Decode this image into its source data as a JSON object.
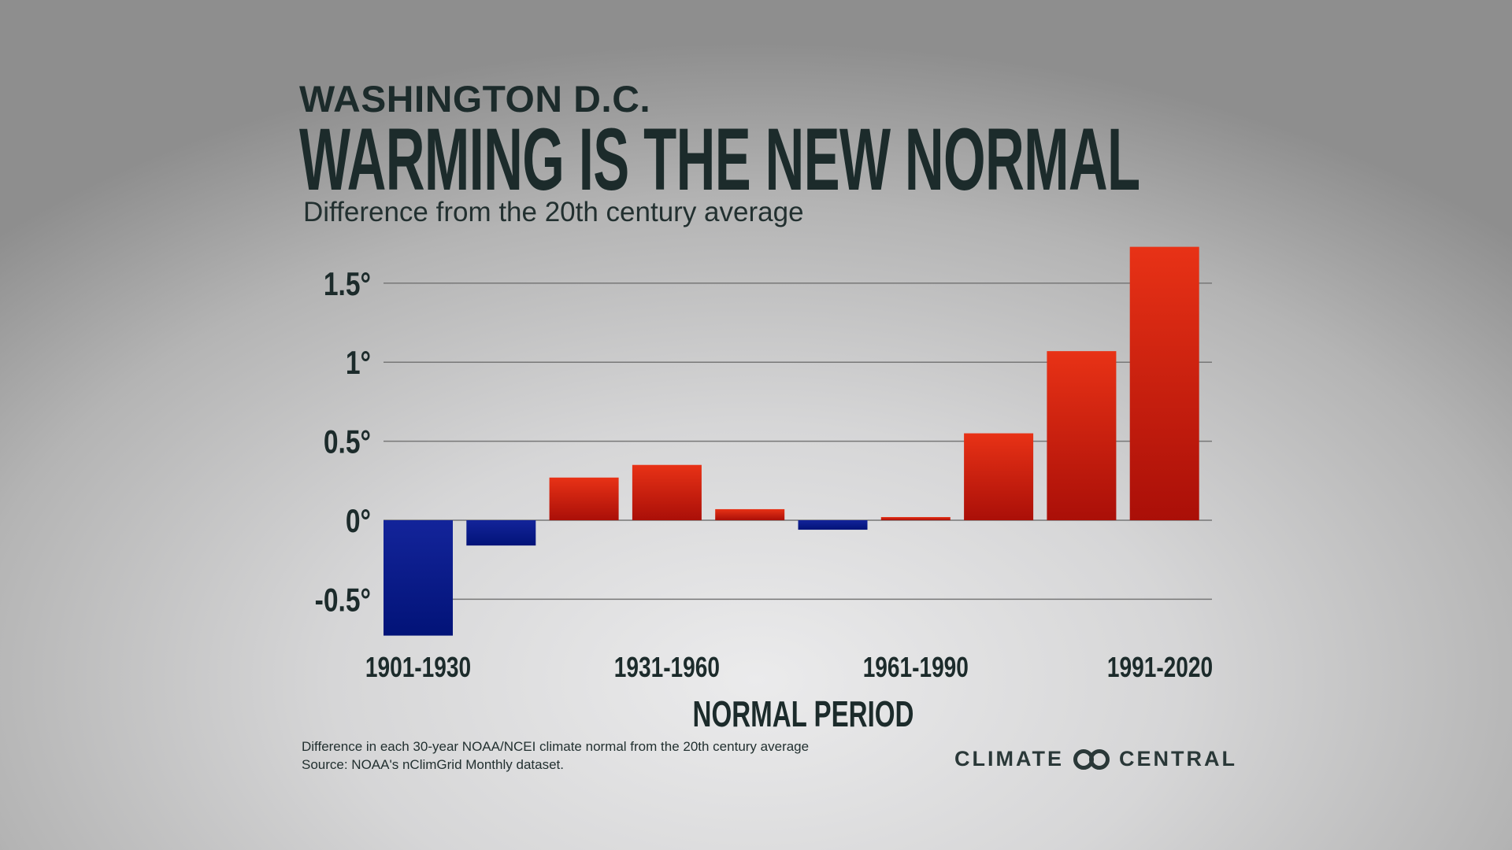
{
  "kicker": "WASHINGTON D.C.",
  "title": "WARMING IS THE NEW NORMAL",
  "subtitle": "Difference from the 20th century average",
  "chart_data": {
    "type": "bar",
    "categories": [
      "1901-1930",
      "",
      "",
      "1931-1960",
      "",
      "",
      "1961-1990",
      "",
      "",
      "1991-2020"
    ],
    "x_tick_labels": [
      "1901-1930",
      "1931-1960",
      "1961-1990",
      "1991-2020"
    ],
    "values": [
      -0.73,
      -0.16,
      0.27,
      0.35,
      0.07,
      -0.06,
      0.02,
      0.55,
      1.07,
      1.73
    ],
    "xlabel": "NORMAL PERIOD",
    "ylabel": "",
    "ylim": [
      -0.75,
      1.75
    ],
    "yticks": [
      -0.5,
      0,
      0.5,
      1,
      1.5
    ],
    "ytick_labels": [
      "-0.5°",
      "0°",
      "0.5°",
      "1°",
      "1.5°"
    ],
    "grid": true,
    "colors": {
      "positive": "#c41a0e",
      "negative": "#0a1a8c"
    }
  },
  "footnote": {
    "line1": "Difference in each 30-year NOAA/NCEI climate normal from the 20th century average",
    "line2": "Source: NOAA's nClimGrid Monthly dataset."
  },
  "logo": {
    "left": "CLIMATE",
    "right": "CENTRAL"
  }
}
